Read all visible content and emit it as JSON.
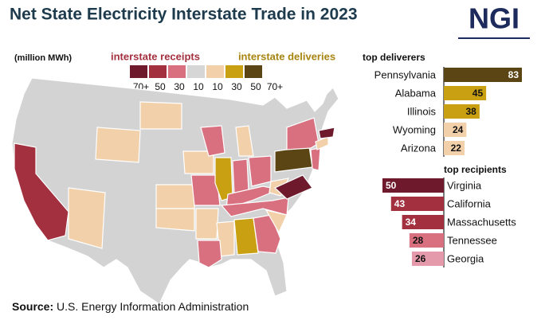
{
  "header": {
    "title": "Net State Electricity Interstate Trade in 2023",
    "logo": "NGI"
  },
  "legend": {
    "unit": "(million MWh)",
    "receipts_label": "interstate receipts",
    "deliveries_label": "interstate deliveries",
    "colors": [
      "#6e1a2c",
      "#a3303f",
      "#d9707f",
      "#d6d6d6",
      "#f2d0aa",
      "#c9a012",
      "#5c4514"
    ],
    "ticks": [
      "70+",
      "50",
      "30",
      "10",
      "10",
      "30",
      "50",
      "70+"
    ]
  },
  "chart_data": [
    {
      "type": "bar",
      "title": "top deliverers",
      "categories": [
        "Pennsylvania",
        "Alabama",
        "Illinois",
        "Wyoming",
        "Arizona"
      ],
      "values": [
        83,
        45,
        38,
        24,
        22
      ],
      "colors": [
        "#5c4514",
        "#c9a012",
        "#c9a012",
        "#f2d0aa",
        "#f2d0aa"
      ]
    },
    {
      "type": "bar",
      "title": "top recipients",
      "categories": [
        "Virginia",
        "California",
        "Massachusetts",
        "Tennessee",
        "Georgia"
      ],
      "values": [
        50,
        43,
        34,
        28,
        26
      ],
      "colors": [
        "#6e1a2c",
        "#a3303f",
        "#a3303f",
        "#d9707f",
        "#e59aab"
      ]
    }
  ],
  "source": {
    "label": "Source:",
    "text": "U.S. Energy Information Administration"
  }
}
